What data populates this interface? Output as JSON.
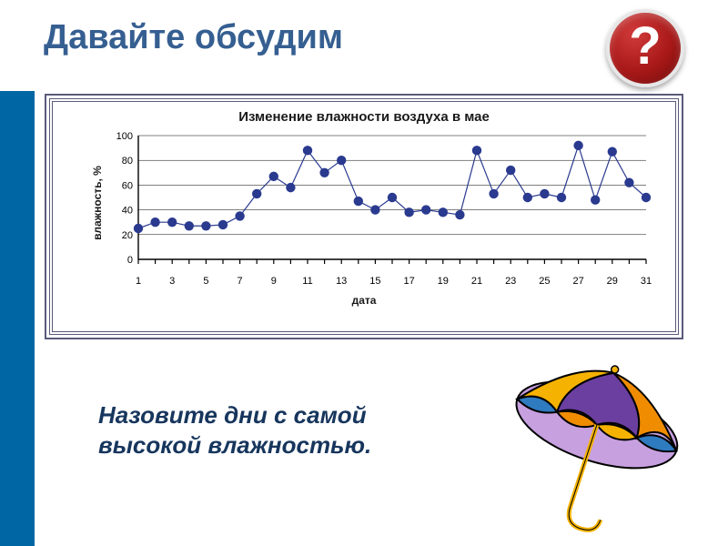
{
  "title": "Давайте обсудим",
  "help_symbol": "?",
  "chart": {
    "type": "line-scatter",
    "title": "Изменение влажности воздуха в мае",
    "ylabel": "влажность, %",
    "xlabel": "дата",
    "ylim": [
      0,
      100
    ],
    "ytick_step": 20,
    "yticks": [
      0,
      20,
      40,
      60,
      80,
      100
    ],
    "xmin": 1,
    "xmax": 31,
    "xticks": [
      1,
      3,
      5,
      7,
      9,
      11,
      13,
      15,
      17,
      19,
      21,
      23,
      25,
      27,
      29,
      31
    ],
    "values": [
      25,
      30,
      30,
      27,
      27,
      28,
      35,
      53,
      67,
      58,
      88,
      70,
      80,
      47,
      40,
      50,
      38,
      40,
      38,
      36,
      88,
      53,
      72,
      50,
      53,
      50,
      92,
      48,
      87,
      62,
      50
    ],
    "marker_color": "#2a3a8f",
    "marker_size": 5.2,
    "line_color": "#2a3a8f",
    "line_width": 1.2,
    "axis_color": "#000000",
    "grid_color": "#000000",
    "grid_width": 0.5,
    "tick_font_size": 11,
    "background": "#ffffff"
  },
  "question_line1": "Назовите дни с самой",
  "question_line2": "высокой влажностью.",
  "umbrella": {
    "panel_colors": [
      "#f5b200",
      "#6b3fa0",
      "#f08c00",
      "#2e7bc0"
    ],
    "inner_color": "#c7a0e0",
    "pole_color": "#f5b200",
    "outline": "#000000"
  },
  "colors": {
    "sidebar": "#0066a4",
    "title": "#365f91",
    "question": "#17365d",
    "frame": "#5a5a7a",
    "badge_bg": "#a81818",
    "badge_text": "#ffffff"
  }
}
